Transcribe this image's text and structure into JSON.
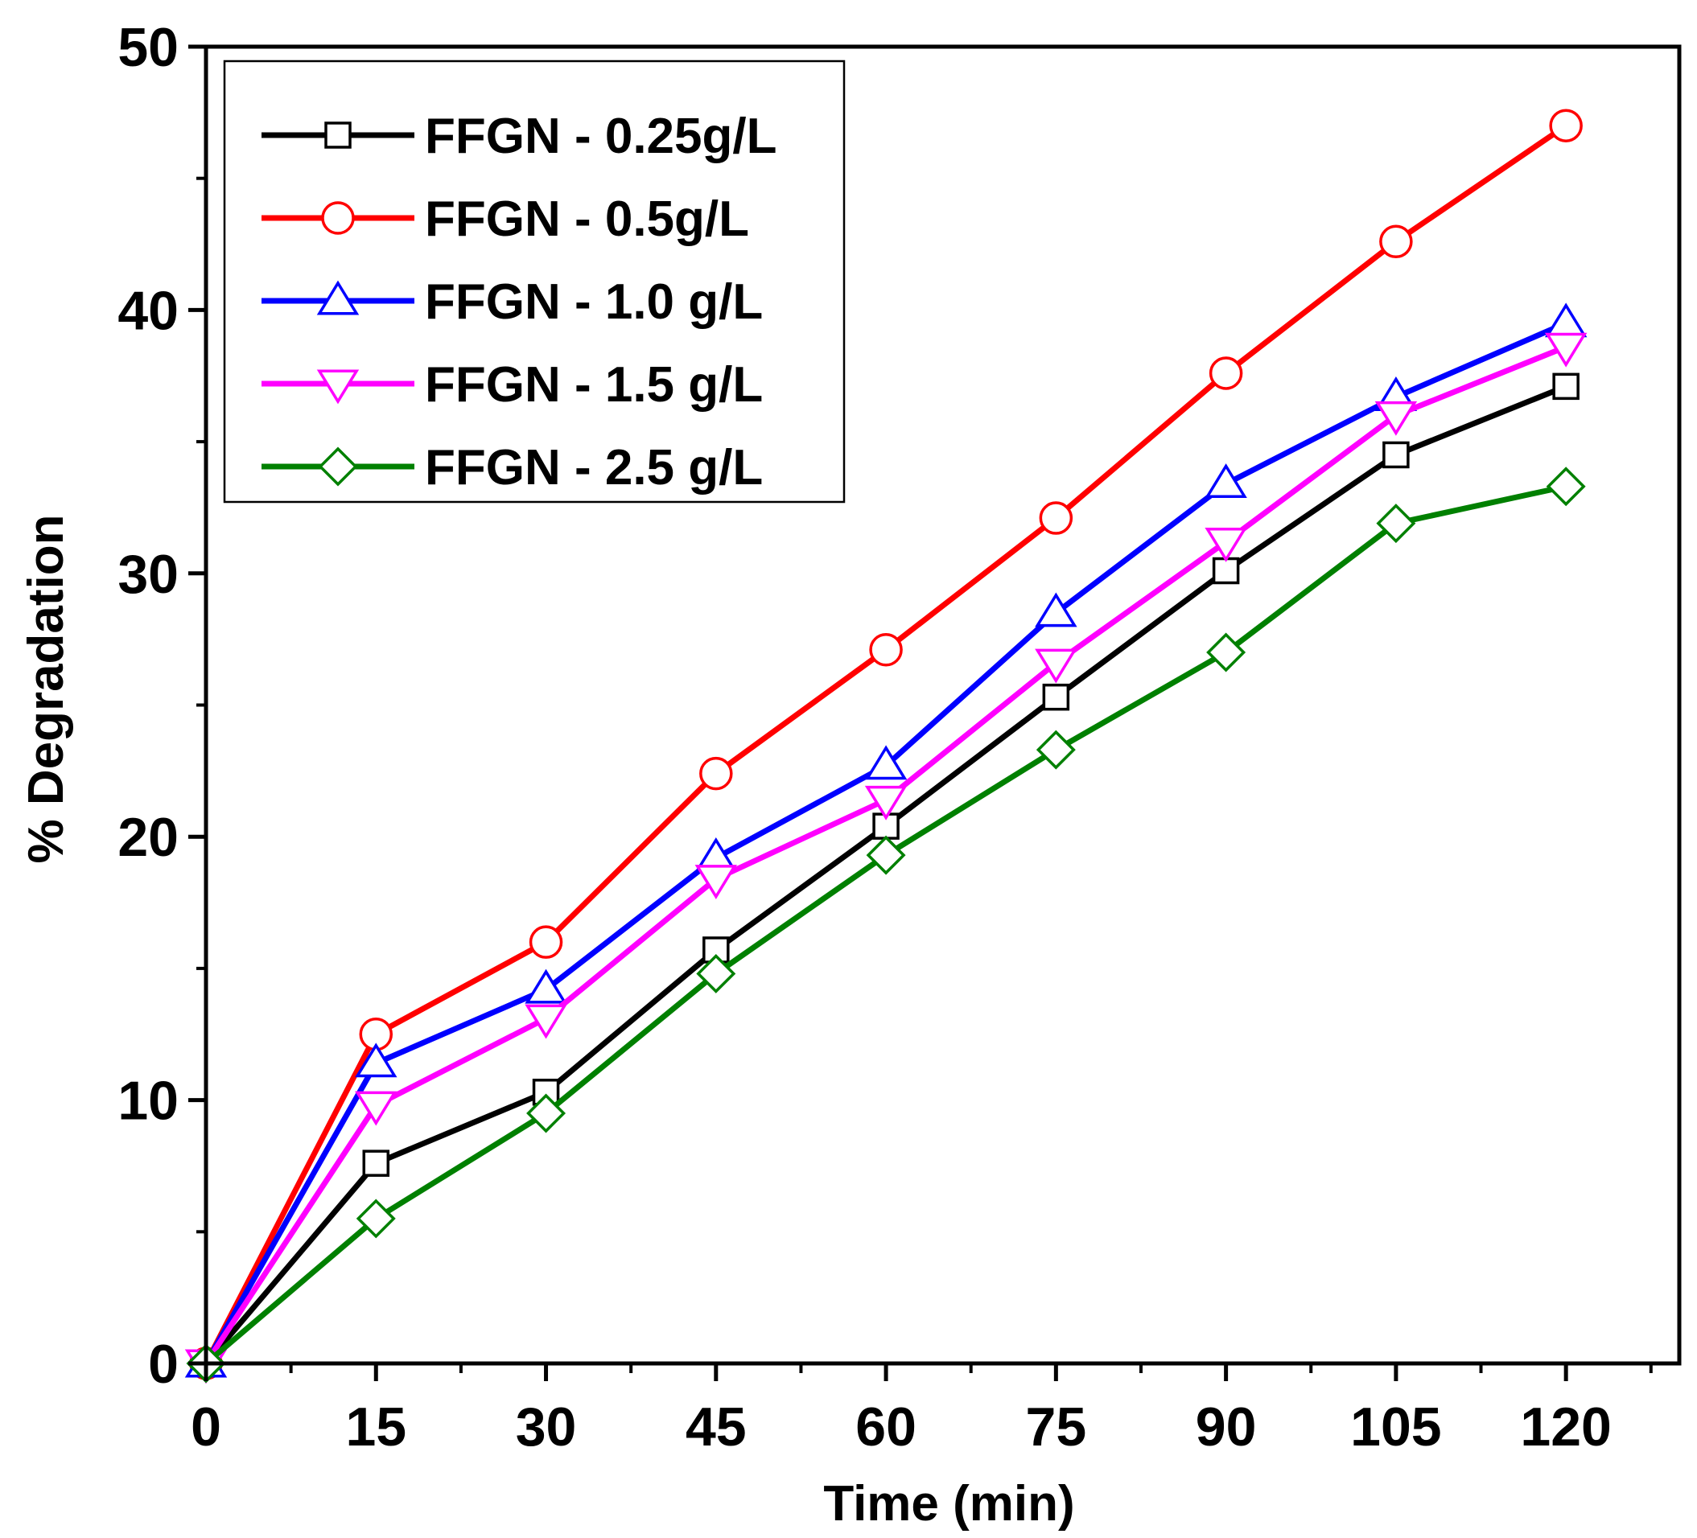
{
  "chart_data": {
    "type": "line",
    "title": "",
    "xlabel": "Time (min)",
    "ylabel": "% Degradation",
    "xlim": [
      0,
      130
    ],
    "ylim": [
      0,
      50
    ],
    "xticks": [
      0,
      15,
      30,
      45,
      60,
      75,
      90,
      105,
      120
    ],
    "xtick_labels": [
      "0",
      "15",
      "30",
      "45",
      "60",
      "75",
      "90",
      "105",
      "120"
    ],
    "yticks": [
      0,
      10,
      20,
      30,
      40,
      50
    ],
    "ytick_labels": [
      "0",
      "10",
      "20",
      "30",
      "40",
      "50"
    ],
    "grid": false,
    "legend_position": "top-left",
    "x": [
      0,
      15,
      30,
      45,
      60,
      75,
      90,
      105,
      120
    ],
    "series": [
      {
        "name": "FFGN - 0.25g/L",
        "color": "#000000",
        "marker": "square",
        "values": [
          0,
          7.6,
          10.3,
          15.7,
          20.4,
          25.3,
          30.1,
          34.5,
          37.1
        ]
      },
      {
        "name": "FFGN - 0.5g/L",
        "color": "#ff0000",
        "marker": "circle",
        "values": [
          0,
          12.5,
          16.0,
          22.4,
          27.1,
          32.1,
          37.6,
          42.6,
          47.0
        ]
      },
      {
        "name": "FFGN - 1.0 g/L",
        "color": "#0000ff",
        "marker": "triangle-up",
        "values": [
          0,
          11.4,
          14.2,
          19.2,
          22.7,
          28.5,
          33.4,
          36.7,
          39.5
        ]
      },
      {
        "name": "FFGN - 1.5 g/L",
        "color": "#ff00ff",
        "marker": "triangle-down",
        "values": [
          0,
          9.8,
          13.1,
          18.4,
          21.4,
          26.6,
          31.2,
          36.0,
          38.6
        ]
      },
      {
        "name": "FFGN - 2.5 g/L",
        "color": "#008000",
        "marker": "diamond",
        "values": [
          0,
          5.5,
          9.5,
          14.8,
          19.3,
          23.3,
          27.0,
          31.9,
          33.3
        ]
      }
    ]
  }
}
